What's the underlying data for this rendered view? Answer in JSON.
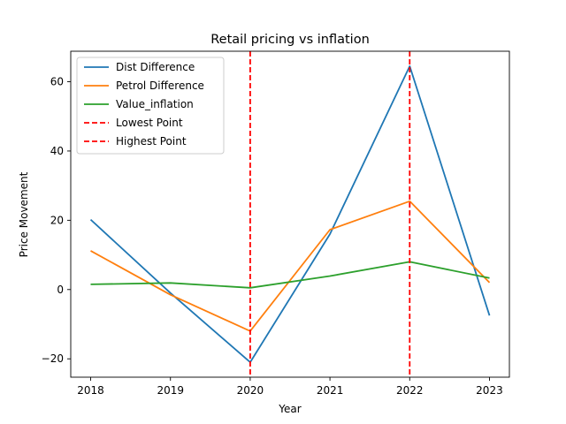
{
  "chart_data": {
    "type": "line",
    "title": "Retail pricing vs inflation",
    "xlabel": "Year",
    "ylabel": "Price Movement",
    "x": [
      2018,
      2019,
      2020,
      2021,
      2022,
      2023
    ],
    "xticks": [
      "2018",
      "2019",
      "2020",
      "2021",
      "2022",
      "2023"
    ],
    "yticks": [
      -20,
      0,
      20,
      40,
      60
    ],
    "ytick_labels": [
      "−20",
      "0",
      "20",
      "40",
      "60"
    ],
    "xlim": [
      2017.75,
      2023.25
    ],
    "ylim": [
      -25.3,
      68.8
    ],
    "grid": false,
    "legend_position": "top-left",
    "series": [
      {
        "name": "Dist Difference",
        "color": "#1f77b4",
        "values": [
          20.2,
          -1.0,
          -21.0,
          16.0,
          64.5,
          -7.5
        ]
      },
      {
        "name": "Petrol Difference",
        "color": "#ff7f0e",
        "values": [
          11.2,
          -1.5,
          -12.0,
          17.3,
          25.5,
          2.0
        ]
      },
      {
        "name": "Value_inflation",
        "color": "#2ca02c",
        "values": [
          1.5,
          1.9,
          0.5,
          3.9,
          8.0,
          3.3
        ]
      }
    ],
    "vlines": [
      {
        "name": "Lowest Point",
        "x": 2020,
        "color": "#ff0000",
        "style": "dashed"
      },
      {
        "name": "Highest Point",
        "x": 2022,
        "color": "#ff0000",
        "style": "dashed"
      }
    ]
  }
}
